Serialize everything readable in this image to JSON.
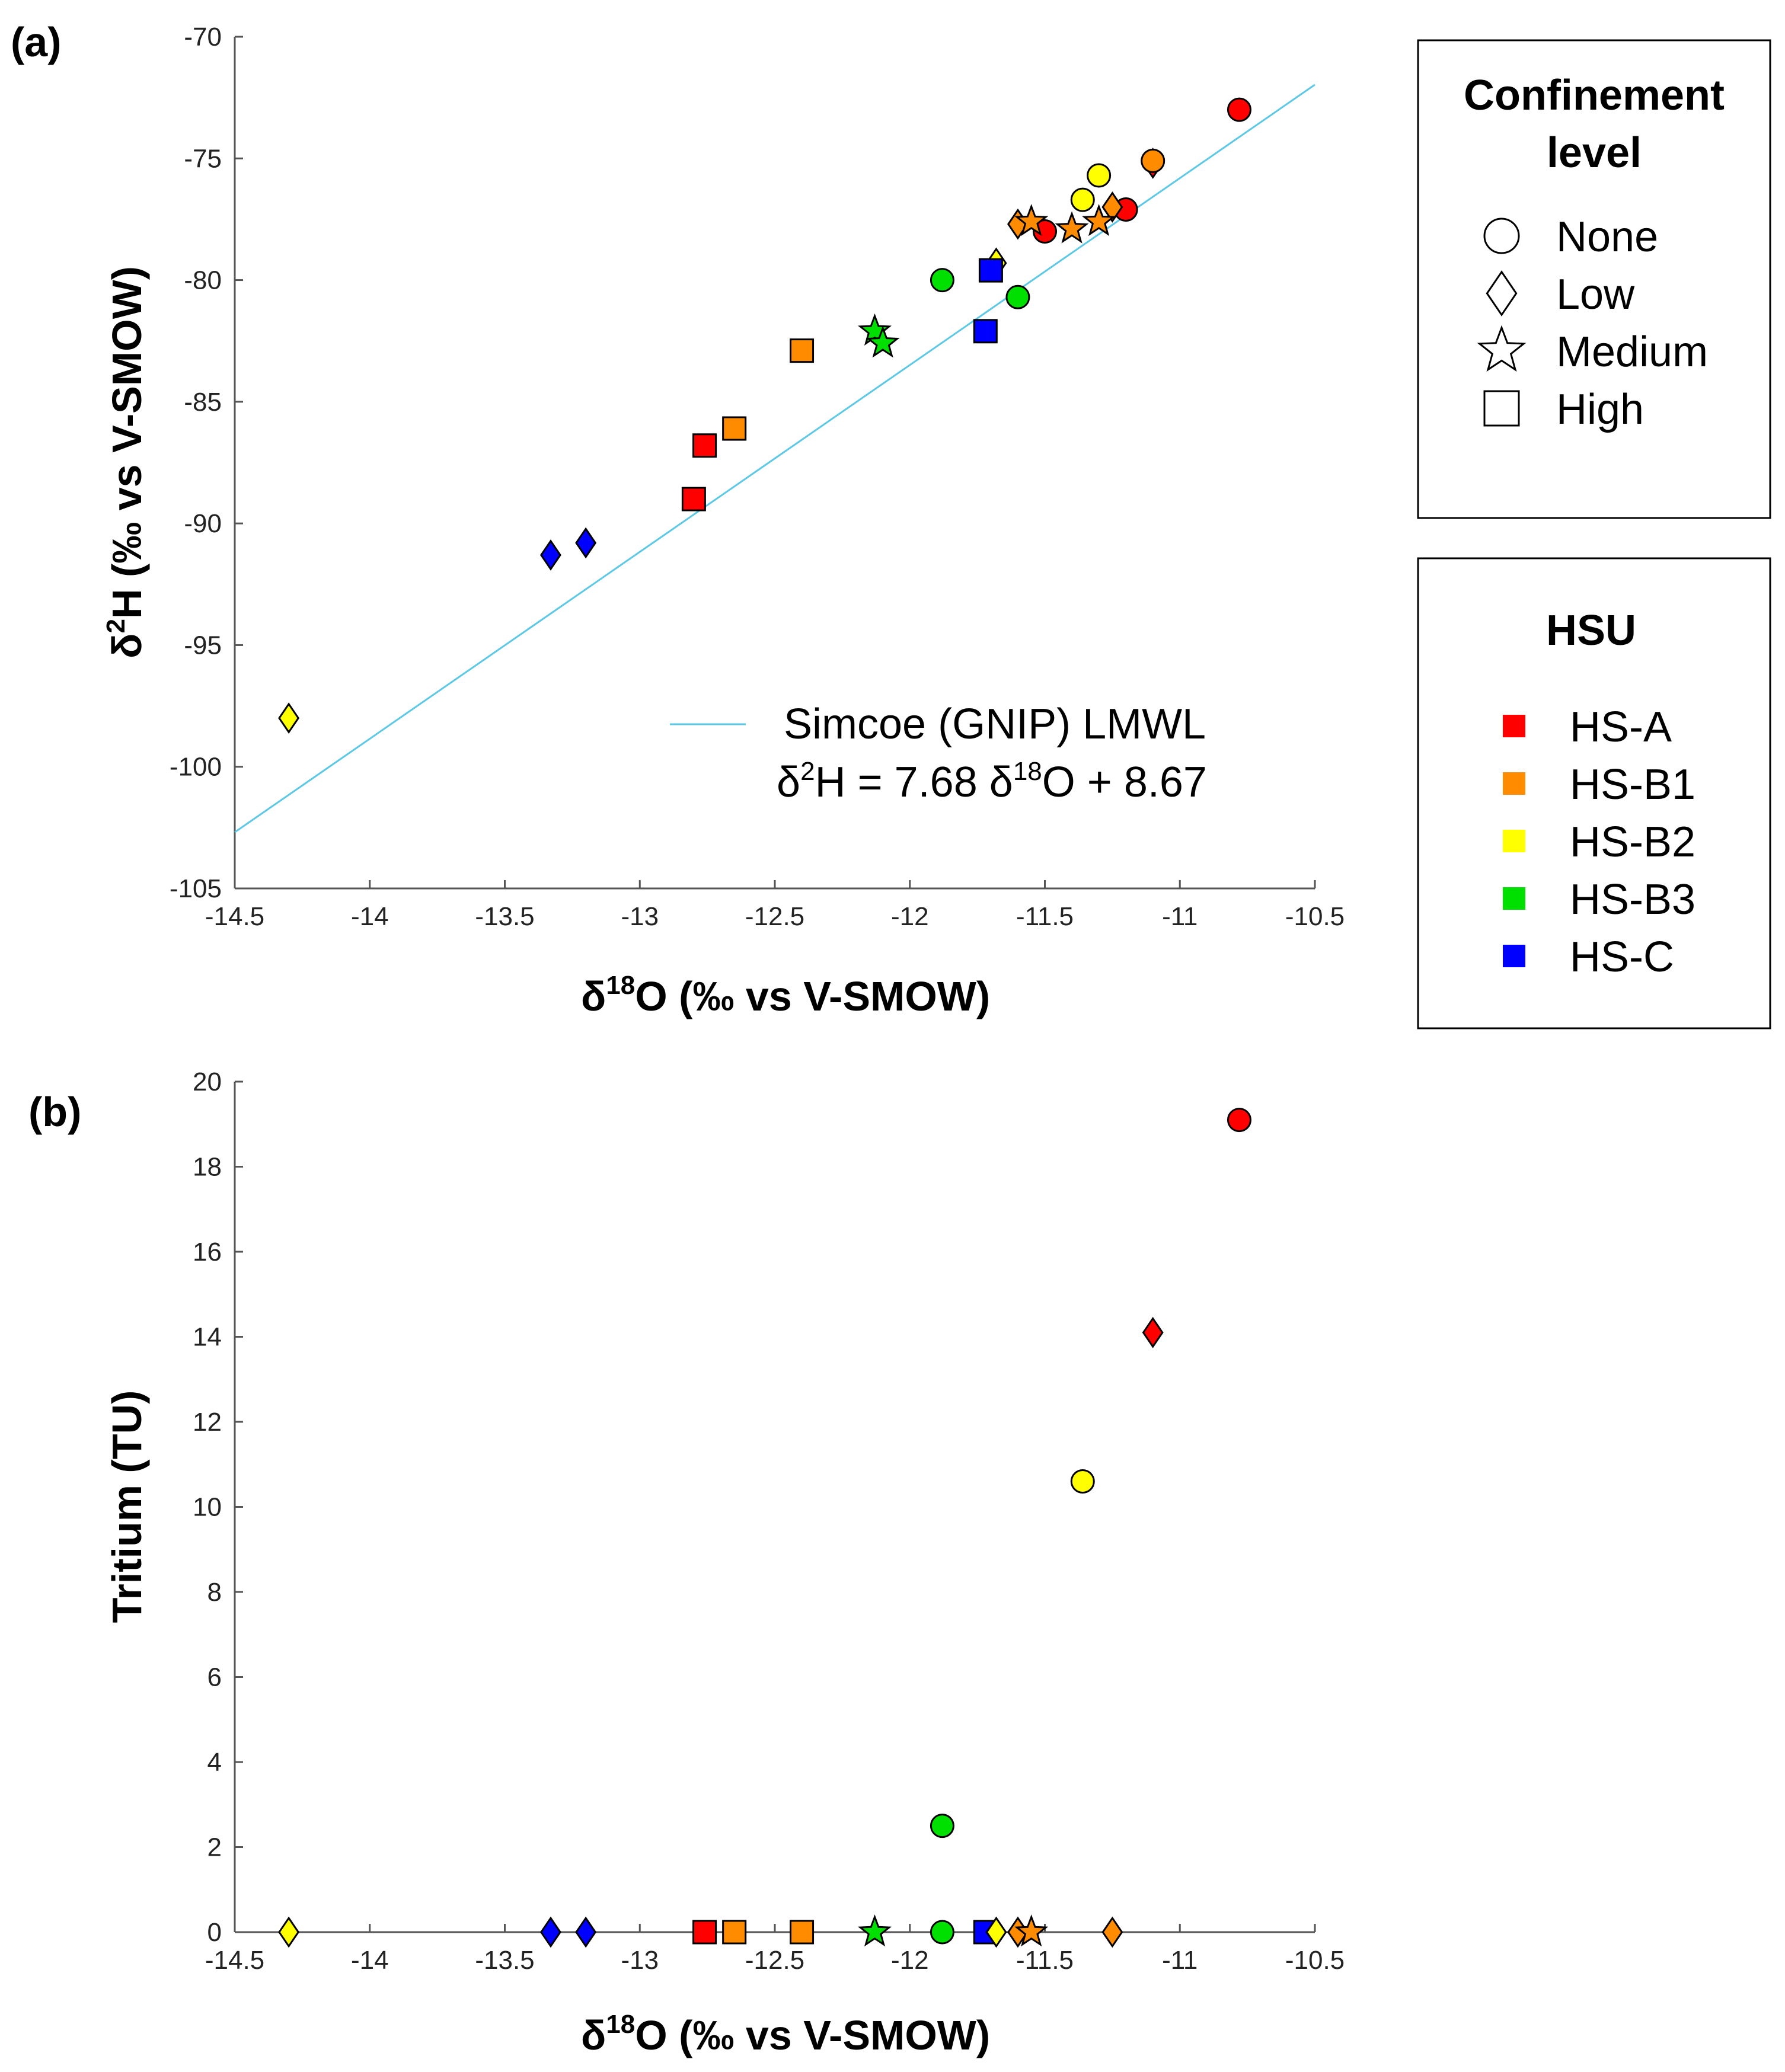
{
  "figure": {
    "panel_a_label": "(a)",
    "panel_b_label": "(b)",
    "line_color": "#5bc8e6"
  },
  "colors": {
    "HS-A": "#ff0000",
    "HS-B1": "#ff8c00",
    "HS-B2": "#ffff00",
    "HS-B3": "#00e000",
    "HS-C": "#0000ff"
  },
  "legend_confinement": {
    "title_line1": "Confinement",
    "title_line2": "level",
    "items": [
      {
        "label": "None",
        "marker": "circle"
      },
      {
        "label": "Low",
        "marker": "diamond"
      },
      {
        "label": "Medium",
        "marker": "star"
      },
      {
        "label": "High",
        "marker": "square"
      }
    ]
  },
  "legend_hsu": {
    "title": "HSU",
    "items": [
      {
        "label": "HS-A",
        "color": "#ff0000"
      },
      {
        "label": "HS-B1",
        "color": "#ff8c00"
      },
      {
        "label": "HS-B2",
        "color": "#ffff00"
      },
      {
        "label": "HS-B3",
        "color": "#00e000"
      },
      {
        "label": "HS-C",
        "color": "#0000ff"
      }
    ]
  },
  "chart_data": [
    {
      "type": "scatter",
      "panel": "(a)",
      "xlabel_base": "δ",
      "xlabel_sup": "18",
      "xlabel_rest": "O (‰ vs V-SMOW)",
      "ylabel_base": "δ",
      "ylabel_sup": "2",
      "ylabel_rest": "H (‰ vs V-SMOW)",
      "xlim": [
        -14.5,
        -10.5
      ],
      "ylim": [
        -105,
        -70
      ],
      "xticks": [
        -14.5,
        -14,
        -13.5,
        -13,
        -12.5,
        -12,
        -11.5,
        -11,
        -10.5
      ],
      "yticks": [
        -105,
        -100,
        -95,
        -90,
        -85,
        -80,
        -75,
        -70
      ],
      "xtick_labels": [
        "-14.5",
        "-14",
        "-13.5",
        "-13",
        "-12.5",
        "-12",
        "-11.5",
        "-11",
        "-10.5"
      ],
      "ytick_labels": [
        "-105",
        "-100",
        "-95",
        "-90",
        "-85",
        "-80",
        "-75",
        "-70"
      ],
      "line": {
        "name": "Simcoe (GNIP) LMWL",
        "slope": 7.68,
        "intercept": 8.67,
        "equation_parts": [
          "δ",
          "2",
          "H = 7.68 δ",
          "18",
          "O + 8.67"
        ]
      },
      "points": [
        {
          "x": -10.78,
          "y": -73.0,
          "hsu": "HS-A",
          "level": "None"
        },
        {
          "x": -11.1,
          "y": -75.2,
          "hsu": "HS-A",
          "level": "Low"
        },
        {
          "x": -11.2,
          "y": -77.1,
          "hsu": "HS-A",
          "level": "None"
        },
        {
          "x": -11.5,
          "y": -78.0,
          "hsu": "HS-A",
          "level": "None"
        },
        {
          "x": -12.76,
          "y": -86.8,
          "hsu": "HS-A",
          "level": "High"
        },
        {
          "x": -12.8,
          "y": -89.0,
          "hsu": "HS-A",
          "level": "High"
        },
        {
          "x": -11.1,
          "y": -75.1,
          "hsu": "HS-B1",
          "level": "None"
        },
        {
          "x": -11.25,
          "y": -77.0,
          "hsu": "HS-B1",
          "level": "Low"
        },
        {
          "x": -11.6,
          "y": -77.7,
          "hsu": "HS-B1",
          "level": "Low"
        },
        {
          "x": -11.55,
          "y": -77.6,
          "hsu": "HS-B1",
          "level": "Medium"
        },
        {
          "x": -11.4,
          "y": -77.9,
          "hsu": "HS-B1",
          "level": "Medium"
        },
        {
          "x": -11.3,
          "y": -77.6,
          "hsu": "HS-B1",
          "level": "Medium"
        },
        {
          "x": -12.4,
          "y": -82.9,
          "hsu": "HS-B1",
          "level": "High"
        },
        {
          "x": -12.65,
          "y": -86.1,
          "hsu": "HS-B1",
          "level": "High"
        },
        {
          "x": -11.3,
          "y": -75.7,
          "hsu": "HS-B2",
          "level": "None"
        },
        {
          "x": -11.36,
          "y": -76.7,
          "hsu": "HS-B2",
          "level": "None"
        },
        {
          "x": -11.68,
          "y": -79.3,
          "hsu": "HS-B2",
          "level": "Low"
        },
        {
          "x": -14.3,
          "y": -98.0,
          "hsu": "HS-B2",
          "level": "Low"
        },
        {
          "x": -11.88,
          "y": -80.0,
          "hsu": "HS-B3",
          "level": "None"
        },
        {
          "x": -11.6,
          "y": -80.7,
          "hsu": "HS-B3",
          "level": "None"
        },
        {
          "x": -12.13,
          "y": -82.1,
          "hsu": "HS-B3",
          "level": "Medium"
        },
        {
          "x": -12.1,
          "y": -82.6,
          "hsu": "HS-B3",
          "level": "Medium"
        },
        {
          "x": -11.7,
          "y": -79.6,
          "hsu": "HS-C",
          "level": "High"
        },
        {
          "x": -11.72,
          "y": -82.1,
          "hsu": "HS-C",
          "level": "High"
        },
        {
          "x": -13.33,
          "y": -91.3,
          "hsu": "HS-C",
          "level": "Low"
        },
        {
          "x": -13.2,
          "y": -90.8,
          "hsu": "HS-C",
          "level": "Low"
        }
      ]
    },
    {
      "type": "scatter",
      "panel": "(b)",
      "xlabel_base": "δ",
      "xlabel_sup": "18",
      "xlabel_rest": "O (‰ vs V-SMOW)",
      "ylabel": "Tritium (TU)",
      "xlim": [
        -14.5,
        -10.5
      ],
      "ylim": [
        0,
        20
      ],
      "xticks": [
        -14.5,
        -14,
        -13.5,
        -13,
        -12.5,
        -12,
        -11.5,
        -11,
        -10.5
      ],
      "yticks": [
        0,
        2,
        4,
        6,
        8,
        10,
        12,
        14,
        16,
        18,
        20
      ],
      "xtick_labels": [
        "-14.5",
        "-14",
        "-13.5",
        "-13",
        "-12.5",
        "-12",
        "-11.5",
        "-11",
        "-10.5"
      ],
      "ytick_labels": [
        "0",
        "2",
        "4",
        "6",
        "8",
        "10",
        "12",
        "14",
        "16",
        "18",
        "20"
      ],
      "points": [
        {
          "x": -10.78,
          "y": 19.1,
          "hsu": "HS-A",
          "level": "None"
        },
        {
          "x": -11.1,
          "y": 14.1,
          "hsu": "HS-A",
          "level": "Low"
        },
        {
          "x": -11.36,
          "y": 10.6,
          "hsu": "HS-B2",
          "level": "None"
        },
        {
          "x": -11.88,
          "y": 2.5,
          "hsu": "HS-B3",
          "level": "None"
        },
        {
          "x": -14.3,
          "y": 0,
          "hsu": "HS-B2",
          "level": "Low"
        },
        {
          "x": -13.33,
          "y": 0,
          "hsu": "HS-C",
          "level": "Low"
        },
        {
          "x": -13.2,
          "y": 0,
          "hsu": "HS-C",
          "level": "Low"
        },
        {
          "x": -12.76,
          "y": 0,
          "hsu": "HS-A",
          "level": "High"
        },
        {
          "x": -12.65,
          "y": 0,
          "hsu": "HS-B1",
          "level": "High"
        },
        {
          "x": -12.4,
          "y": 0,
          "hsu": "HS-B1",
          "level": "High"
        },
        {
          "x": -12.13,
          "y": 0,
          "hsu": "HS-B3",
          "level": "Medium"
        },
        {
          "x": -11.88,
          "y": 0,
          "hsu": "HS-B3",
          "level": "None"
        },
        {
          "x": -11.72,
          "y": 0,
          "hsu": "HS-C",
          "level": "High"
        },
        {
          "x": -11.68,
          "y": 0,
          "hsu": "HS-B2",
          "level": "Low"
        },
        {
          "x": -11.6,
          "y": 0,
          "hsu": "HS-B1",
          "level": "Low"
        },
        {
          "x": -11.55,
          "y": 0,
          "hsu": "HS-B1",
          "level": "Medium"
        },
        {
          "x": -11.25,
          "y": 0,
          "hsu": "HS-B1",
          "level": "Low"
        }
      ]
    }
  ]
}
